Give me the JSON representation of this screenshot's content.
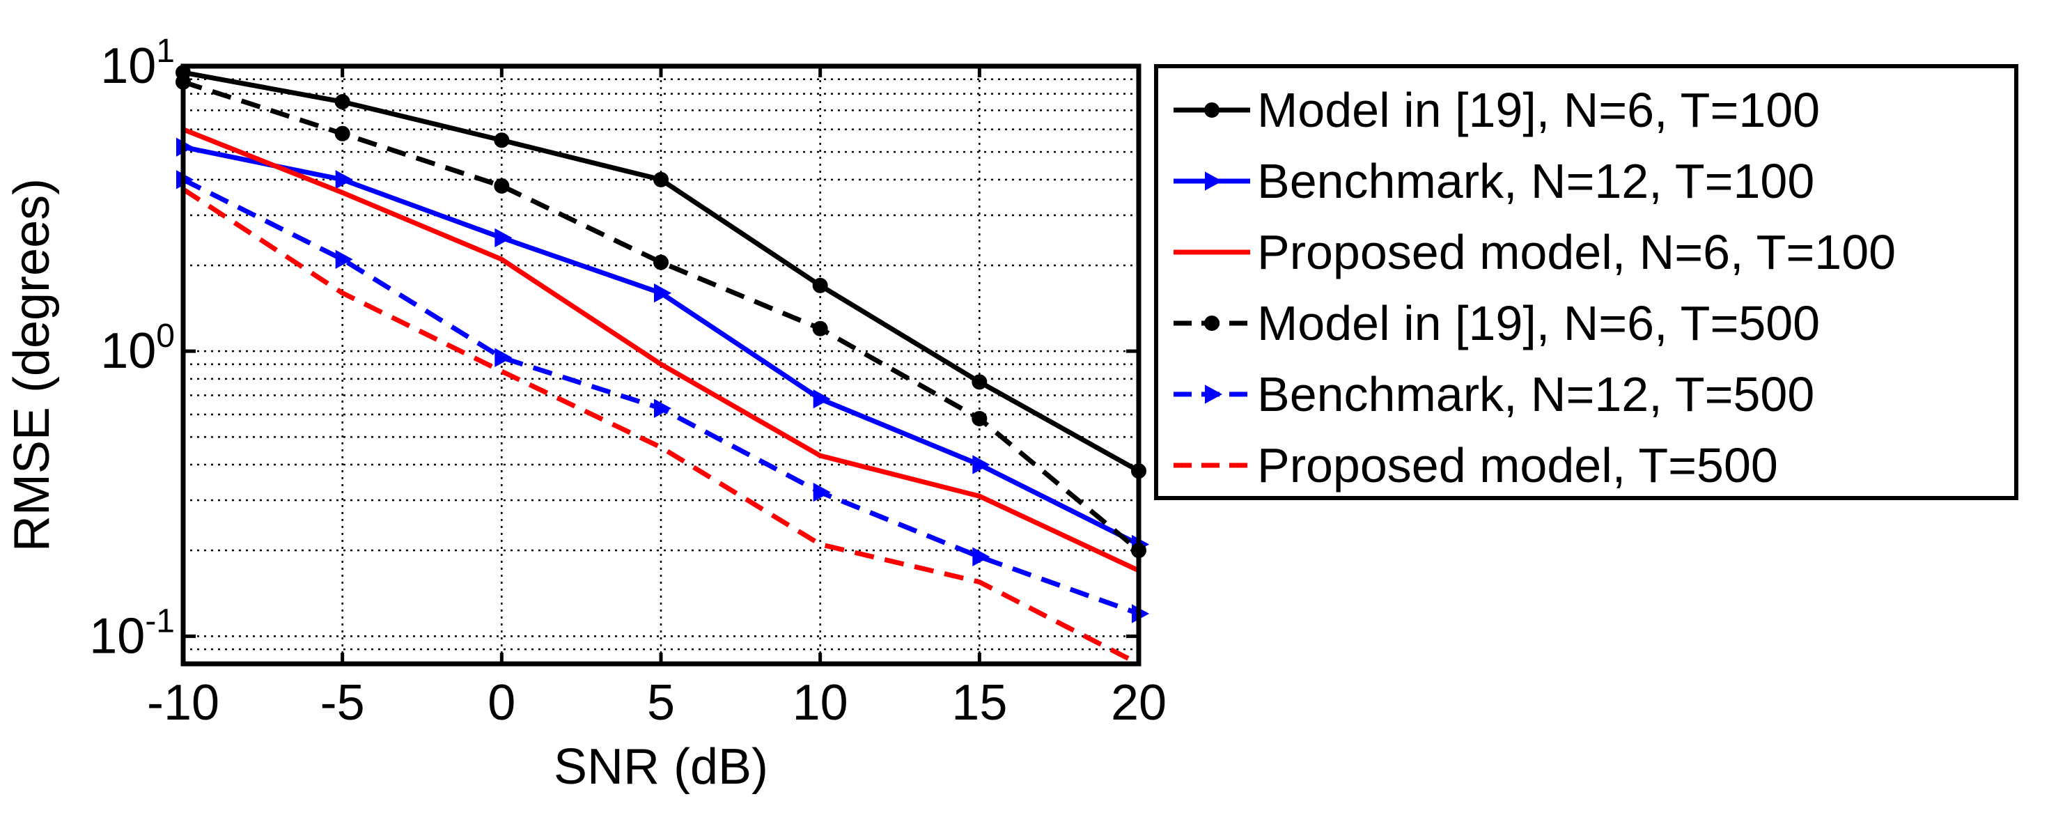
{
  "chart_data": {
    "type": "line",
    "title": "",
    "xlabel": "SNR (dB)",
    "ylabel": "RMSE (degrees)",
    "x": [
      -10,
      -5,
      0,
      5,
      10,
      15,
      20
    ],
    "xlim": [
      -10,
      20
    ],
    "ylim": [
      0.08,
      10
    ],
    "yscale": "log",
    "grid": true,
    "legend_position": "outside-right",
    "xticks": [
      "-10",
      "-5",
      "0",
      "5",
      "10",
      "15",
      "20"
    ],
    "yticks": [
      {
        "value": 0.1,
        "base": "10",
        "exp": "-1"
      },
      {
        "value": 1,
        "base": "10",
        "exp": "0"
      },
      {
        "value": 10,
        "base": "10",
        "exp": "1"
      }
    ],
    "series": [
      {
        "name": "Model in [19], N=6, T=100",
        "color": "#000000",
        "dash": "solid",
        "marker": "circle",
        "values": [
          9.5,
          7.5,
          5.5,
          4.0,
          1.7,
          0.78,
          0.38
        ]
      },
      {
        "name": "Benchmark, N=12, T=100",
        "color": "#0000ff",
        "dash": "solid",
        "marker": "triangle-right",
        "values": [
          5.2,
          4.0,
          2.5,
          1.6,
          0.68,
          0.4,
          0.21
        ]
      },
      {
        "name": "Proposed model, N=6, T=100",
        "color": "#ff0000",
        "dash": "solid",
        "marker": "none",
        "values": [
          6.0,
          3.6,
          2.1,
          0.9,
          0.43,
          0.31,
          0.17
        ]
      },
      {
        "name": "Model in [19], N=6, T=500",
        "color": "#000000",
        "dash": "dashed",
        "marker": "circle",
        "values": [
          8.8,
          5.8,
          3.8,
          2.05,
          1.2,
          0.58,
          0.2
        ]
      },
      {
        "name": "Benchmark, N=12, T=500",
        "color": "#0000ff",
        "dash": "dashed",
        "marker": "triangle-right",
        "values": [
          4.0,
          2.1,
          0.95,
          0.63,
          0.32,
          0.19,
          0.12
        ]
      },
      {
        "name": "Proposed model, T=500",
        "color": "#ff0000",
        "dash": "dashed",
        "marker": "none",
        "values": [
          3.7,
          1.6,
          0.85,
          0.46,
          0.21,
          0.155,
          0.08
        ]
      }
    ]
  }
}
